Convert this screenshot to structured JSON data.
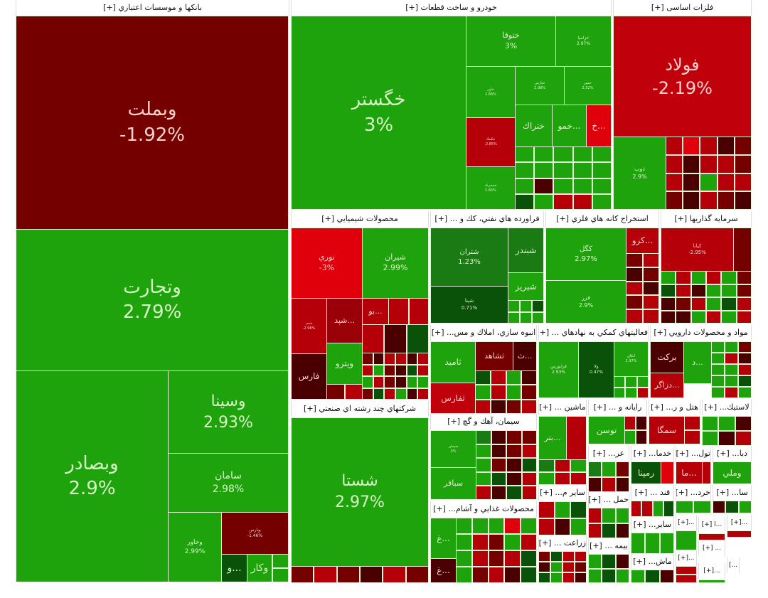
{
  "sectors": [
    {
      "title": "بانکها و موسسات اعتباري [+]",
      "tiles": [
        {
          "name": "وبملت",
          "change": "-1.92%",
          "color": "#740000"
        },
        {
          "name": "وتجارت",
          "change": "2.79%",
          "color": "#1fa30c"
        },
        {
          "name": "وبصادر",
          "change": "2.9%",
          "color": "#1fa30c"
        },
        {
          "name": "وسينا",
          "change": "2.93%",
          "color": "#1fa30c"
        },
        {
          "name": "سامان",
          "change": "2.98%",
          "color": "#1fa30c"
        },
        {
          "name": "وخاور",
          "change": "2.99%",
          "color": "#1fa30c"
        },
        {
          "name": "وپارس",
          "change": "-1.46%",
          "color": "#740000"
        },
        {
          "name": "و...",
          "color": "#0a520a"
        },
        {
          "name": "وكار",
          "color": "#1fa30c"
        }
      ]
    },
    {
      "title": "خودرو و ساخت قطعات [+]",
      "tiles": [
        {
          "name": "خگستر",
          "change": "3%",
          "color": "#1fa30c"
        },
        {
          "name": "ختوقا",
          "change": "3%",
          "color": "#1fa30c"
        },
        {
          "name": "خزامیا",
          "change": "2.97%",
          "color": "#1fa30c"
        },
        {
          "name": "خاور",
          "change": "2.66%",
          "color": "#1fa30c"
        },
        {
          "name": "خپارس",
          "change": "2.98%",
          "color": "#1fa30c"
        },
        {
          "name": "خمور",
          "change": "2.52%",
          "color": "#1fa30c"
        },
        {
          "name": "خكمك",
          "change": "-2.85%",
          "color": "#b5000a"
        },
        {
          "name": "خمحركه",
          "change": "2.65%",
          "color": "#1fa30c"
        },
        {
          "name": "ختراك",
          "color": "#1fa30c"
        },
        {
          "name": "خمو...",
          "color": "#1fa30c"
        },
        {
          "name": "خ...",
          "color": "#e0000c"
        }
      ]
    },
    {
      "title": "فلزات اساسی [+]",
      "tiles": [
        {
          "name": "فولاد",
          "change": "-2.19%",
          "color": "#c0000a"
        },
        {
          "name": "ذوب",
          "change": "2.9%",
          "color": "#1fa30c"
        }
      ]
    },
    {
      "title": "محصولات شيميايي [+]",
      "tiles": [
        {
          "name": "نوري",
          "change": "-3%",
          "color": "#e0000c"
        },
        {
          "name": "شيران",
          "change": "2.99%",
          "color": "#1fa30c"
        },
        {
          "name": "شيم",
          "change": "-2.98%",
          "color": "#b5000a"
        },
        {
          "name": "شپد...",
          "color": "#9a0008"
        },
        {
          "name": "بو...",
          "color": "#b5000a"
        },
        {
          "name": "فارس",
          "color": "#4a0000"
        },
        {
          "name": "ويترو",
          "color": "#1fa30c"
        }
      ]
    },
    {
      "title": "فراورده هاي نفتي، كك و ... [+]",
      "tiles": [
        {
          "name": "شتران",
          "change": "1.23%",
          "color": "#1a7a14"
        },
        {
          "name": "شپنا",
          "change": "0.71%",
          "color": "#0a520a"
        },
        {
          "name": "شبندر",
          "color": "#1a7a14"
        },
        {
          "name": "شبريز",
          "color": "#1fa30c"
        }
      ]
    },
    {
      "title": "استخراج كانه هاي فلزي [+]",
      "tiles": [
        {
          "name": "كگل",
          "change": "2.97%",
          "color": "#1fa30c"
        },
        {
          "name": "فزر",
          "change": "2.9%",
          "color": "#1fa30c"
        },
        {
          "name": "كرو...",
          "color": "#b5000a"
        }
      ]
    },
    {
      "title": "سرمايه گذاريها [+]",
      "tiles": [
        {
          "name": "كيانا",
          "change": "-2.95%",
          "color": "#b5000a"
        }
      ]
    },
    {
      "title": "انبوه سازي، املاك و مس... [+]",
      "tiles": [
        {
          "name": "ثاميد",
          "color": "#1fa30c"
        },
        {
          "name": "ثشاهد",
          "color": "#740000"
        },
        {
          "name": "ث...",
          "color": "#4a0000"
        },
        {
          "name": "ثفارس",
          "color": "#c0000a"
        }
      ]
    },
    {
      "title": "فعاليتهاي كمكي به نهادهاي ... [+]",
      "tiles": [
        {
          "name": "فرابورس",
          "change": "2.93%",
          "color": "#1fa30c"
        },
        {
          "name": "ولا",
          "change": "0.47%",
          "color": "#0a520a"
        },
        {
          "name": "اتكاي",
          "change": "2.97%",
          "color": "#1fa30c"
        }
      ]
    },
    {
      "title": "مواد و محصولات دارويي [+]",
      "tiles": [
        {
          "name": "بركت",
          "color": "#4a0000"
        },
        {
          "name": "دزاگر...",
          "color": "#b5000a"
        },
        {
          "name": "د...",
          "color": "#1fa30c"
        }
      ]
    },
    {
      "title": "شركتهاي چند رشته اي صنعتي [+]",
      "tiles": [
        {
          "name": "شستا",
          "change": "2.97%",
          "color": "#1fa30c"
        }
      ]
    },
    {
      "title": "سيمان، آهك و گچ [+]",
      "tiles": [
        {
          "name": "سيمان",
          "change": "3%",
          "color": "#1fa30c"
        },
        {
          "name": "سباقر",
          "color": "#1fa30c"
        }
      ]
    },
    {
      "title": "محصولات غذايي و آشام... [+]",
      "tiles": [
        {
          "name": "غ...",
          "color": "#1fa30c"
        },
        {
          "name": "غ...",
          "color": "#4a0000"
        }
      ]
    },
    {
      "title": "ماشين ... [+]",
      "tiles": [
        {
          "name": "بتر...",
          "color": "#1fa30c"
        }
      ]
    },
    {
      "title": "رايانه و ... [+]",
      "tiles": [
        {
          "name": "توسن",
          "color": "#1fa30c"
        }
      ]
    },
    {
      "title": "هتل و ر... [+]",
      "tiles": [
        {
          "name": "سمگا",
          "color": "#b5000a"
        }
      ]
    },
    {
      "title": "لاستيك... [+]",
      "tiles": []
    },
    {
      "title": "عر... [+]",
      "tiles": []
    },
    {
      "title": "خدما... [+]",
      "tiles": [
        {
          "name": "رمپنا",
          "color": "#0a520a"
        }
      ]
    },
    {
      "title": "تول... [+]",
      "tiles": [
        {
          "name": "ما...",
          "color": "#b5000a"
        }
      ]
    },
    {
      "title": "دبا... [+]",
      "tiles": [
        {
          "name": "وملي",
          "color": "#1fa30c"
        }
      ]
    },
    {
      "title": "ساير م... [+]",
      "tiles": []
    },
    {
      "title": "حمل ... [+]",
      "tiles": []
    },
    {
      "title": "قند ... [+]",
      "tiles": []
    },
    {
      "title": "خرد... [+]",
      "tiles": []
    },
    {
      "title": "سا... [+]",
      "tiles": []
    },
    {
      "title": "زراعت ... [+]",
      "tiles": []
    },
    {
      "title": "بيمه ... [+]",
      "tiles": []
    },
    {
      "title": "ساير... [+]",
      "tiles": []
    },
    {
      "title": "ماش... [+]",
      "tiles": []
    },
    {
      "title": "...[+]",
      "tiles": []
    },
    {
      "title": "...ا [+]",
      "tiles": []
    },
    {
      "title": "...[+]",
      "tiles": []
    },
    {
      "title": "...[+]",
      "tiles": []
    },
    {
      "title": "... [+]",
      "tiles": []
    },
    {
      "title": "...[+]",
      "tiles": []
    },
    {
      "title": "...]",
      "tiles": []
    }
  ],
  "colors": {
    "up_strong": "#1fa30c",
    "up_mid": "#1a7a14",
    "up_weak": "#0a520a",
    "down_weak": "#740000",
    "down_mid": "#b5000a",
    "down_strong": "#e0000c",
    "down_dark": "#4a0000"
  }
}
